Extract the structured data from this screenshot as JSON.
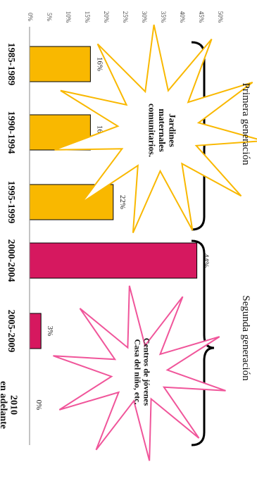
{
  "chart_data": {
    "type": "bar",
    "categories": [
      "1985-1989",
      "1990-1994",
      "1995-1999",
      "2000-2004",
      "2005-2009",
      "2010 en adelante"
    ],
    "values": [
      16,
      16,
      22,
      44,
      3,
      0
    ],
    "value_labels": [
      "16%",
      "16%",
      "22%",
      "44%",
      "3%",
      "0%"
    ],
    "ylim": [
      0,
      50
    ],
    "ytick_labels": [
      "0%",
      "5%",
      "10%",
      "15%",
      "20%",
      "25%",
      "30%",
      "35%",
      "40%",
      "45%",
      "50%"
    ],
    "colors": [
      "#f9b800",
      "#f9b800",
      "#f9b800",
      "#d6185f",
      "#d6185f",
      "#d6185f"
    ],
    "orientation": "rotated-90",
    "groups": [
      {
        "label": "Primera generación",
        "note": "Jardines maternales comunitarios.",
        "color": "#f9b800"
      },
      {
        "label": "Segunda generación",
        "note": "Centros de jóvenes Casa del niño, etc.",
        "color": "#f0559a"
      }
    ]
  }
}
